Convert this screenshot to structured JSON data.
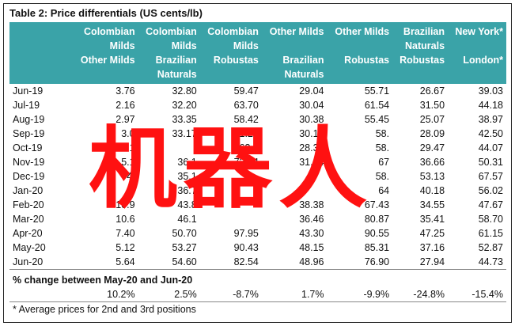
{
  "title": "Table 2: Price differentials (US cents/lb)",
  "headers": [
    "",
    "Colombian\nMilds\nOther Milds",
    "Colombian\nMilds\nBrazilian\nNaturals",
    "Colombian\nMilds\nRobustas",
    "Other Milds\n\nBrazilian\nNaturals",
    "Other Milds\n\nRobustas",
    "Brazilian\nNaturals\nRobustas",
    "New York*\n\nLondon*"
  ],
  "rows": [
    [
      "Jun-19",
      "3.76",
      "32.80",
      "59.47",
      "29.04",
      "55.71",
      "26.67",
      "39.03"
    ],
    [
      "Jul-19",
      "2.16",
      "32.20",
      "63.70",
      "30.04",
      "61.54",
      "31.50",
      "44.18"
    ],
    [
      "Aug-19",
      "2.97",
      "33.35",
      "58.42",
      "30.38",
      "55.45",
      "25.07",
      "38.97"
    ],
    [
      "Sep-19",
      "3.0",
      "33.17",
      "61.26",
      "30.16",
      "58.",
      "28.09",
      "42.50"
    ],
    [
      "Oct-19",
      "5.1",
      "",
      "63.4",
      "28.39",
      "58.",
      "29.47",
      "44.07"
    ],
    [
      "Nov-19",
      "5.1",
      "36.1",
      "72.84",
      "31.04",
      "67",
      "36.66",
      "50.31"
    ],
    [
      "Dec-19",
      "4.",
      "35.1",
      "",
      "",
      "58.",
      "53.13",
      "67.57"
    ],
    [
      "Jan-20",
      "",
      "36.7",
      "",
      "",
      "64",
      "40.18",
      "56.02"
    ],
    [
      "Feb-20",
      "10.9",
      "43.8",
      "",
      "38.38",
      "67.43",
      "34.55",
      "47.67"
    ],
    [
      "Mar-20",
      "10.6",
      "46.1",
      "",
      "36.46",
      "80.87",
      "35.41",
      "58.70"
    ],
    [
      "Apr-20",
      "7.40",
      "50.70",
      "97.95",
      "43.30",
      "90.55",
      "47.25",
      "61.15"
    ],
    [
      "May-20",
      "5.12",
      "53.27",
      "90.43",
      "48.15",
      "85.31",
      "37.16",
      "52.87"
    ],
    [
      "Jun-20",
      "5.64",
      "54.60",
      "82.54",
      "48.96",
      "76.90",
      "27.94",
      "44.73"
    ]
  ],
  "change_label": "% change between May-20 and Jun-20",
  "change_values": [
    "10.2%",
    "2.5%",
    "-8.7%",
    "1.7%",
    "-9.9%",
    "-24.8%",
    "-15.4%"
  ],
  "footnote": "* Average prices for 2nd and 3rd positions",
  "watermark": "机器人"
}
